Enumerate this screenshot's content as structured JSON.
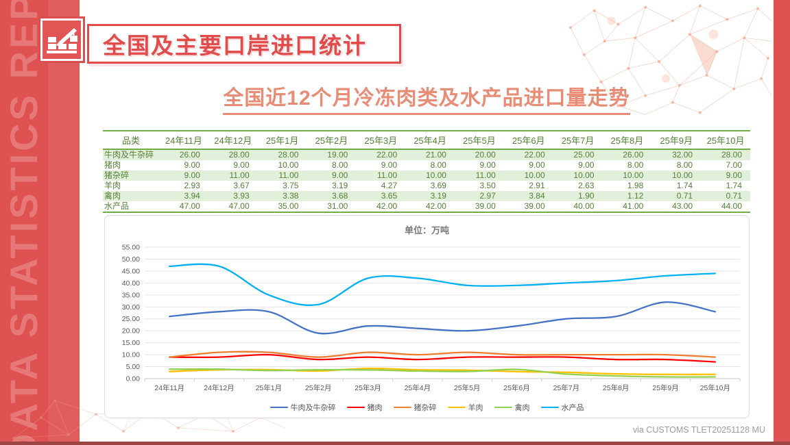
{
  "sidebar": {
    "vertical_text": "DATA STATISTICS REPORT"
  },
  "header": {
    "title": "全国及主要口岸进口统计",
    "subtitle": "全国近12个月冷冻肉类及水产品进口量走势"
  },
  "table": {
    "columns": [
      "品类",
      "24年11月",
      "24年12月",
      "25年1月",
      "25年2月",
      "25年3月",
      "25年4月",
      "25年5月",
      "25年6月",
      "25年7月",
      "25年8月",
      "25年9月",
      "25年10月"
    ],
    "rows": [
      {
        "label": "牛肉及牛杂碎",
        "values": [
          "26.00",
          "28.00",
          "28.00",
          "19.00",
          "22.00",
          "21.00",
          "20.00",
          "22.00",
          "25.00",
          "26.00",
          "32.00",
          "28.00"
        ]
      },
      {
        "label": "猪肉",
        "values": [
          "9.00",
          "9.00",
          "10.00",
          "8.00",
          "9.00",
          "8.00",
          "9.00",
          "9.00",
          "9.00",
          "8.00",
          "8.00",
          "7.00"
        ]
      },
      {
        "label": "猪杂碎",
        "values": [
          "9.00",
          "11.00",
          "11.00",
          "9.00",
          "11.00",
          "10.00",
          "11.00",
          "10.00",
          "10.00",
          "10.00",
          "10.00",
          "9.00"
        ]
      },
      {
        "label": "羊肉",
        "values": [
          "2.93",
          "3.67",
          "3.75",
          "3.19",
          "4.27",
          "3.69",
          "3.50",
          "2.91",
          "2.63",
          "1.98",
          "1.74",
          "1.74"
        ]
      },
      {
        "label": "禽肉",
        "values": [
          "3.94",
          "3.93",
          "3.38",
          "3.68",
          "3.65",
          "3.19",
          "2.97",
          "3.84",
          "1.90",
          "1.12",
          "0.71",
          "0.71"
        ]
      },
      {
        "label": "水产品",
        "values": [
          "47.00",
          "47.00",
          "35.00",
          "31.00",
          "42.00",
          "42.00",
          "39.00",
          "39.00",
          "40.00",
          "41.00",
          "43.00",
          "44.00"
        ]
      }
    ]
  },
  "chart_data": {
    "type": "line",
    "title": "单位：万吨",
    "categories": [
      "24年11月",
      "24年12月",
      "25年1月",
      "25年2月",
      "25年3月",
      "25年4月",
      "25年5月",
      "25年6月",
      "25年7月",
      "25年8月",
      "25年9月",
      "25年10月"
    ],
    "series": [
      {
        "name": "牛肉及牛杂碎",
        "color": "#4472C4",
        "values": [
          26,
          28,
          28,
          19,
          22,
          21,
          20,
          22,
          25,
          26,
          32,
          28
        ]
      },
      {
        "name": "猪肉",
        "color": "#FF0000",
        "values": [
          9,
          9,
          10,
          8,
          9,
          8,
          9,
          9,
          9,
          8,
          8,
          7
        ]
      },
      {
        "name": "猪杂碎",
        "color": "#ED7D31",
        "values": [
          9,
          11,
          11,
          9,
          11,
          10,
          11,
          10,
          10,
          10,
          10,
          9
        ]
      },
      {
        "name": "羊肉",
        "color": "#FFC000",
        "values": [
          2.93,
          3.67,
          3.75,
          3.19,
          4.27,
          3.69,
          3.5,
          2.91,
          2.63,
          1.98,
          1.74,
          1.74
        ]
      },
      {
        "name": "禽肉",
        "color": "#92D050",
        "values": [
          3.94,
          3.93,
          3.38,
          3.68,
          3.65,
          3.19,
          2.97,
          3.84,
          1.9,
          1.12,
          0.71,
          0.71
        ]
      },
      {
        "name": "水产品",
        "color": "#00B0F0",
        "values": [
          47,
          47,
          35,
          31,
          42,
          42,
          39,
          39,
          40,
          41,
          43,
          44
        ]
      }
    ],
    "ylim": [
      0,
      55
    ],
    "ytick_step": 5,
    "yticks": [
      "0.00",
      "5.00",
      "10.00",
      "15.00",
      "20.00",
      "25.00",
      "30.00",
      "35.00",
      "40.00",
      "45.00",
      "50.00",
      "55.00"
    ],
    "grid": true,
    "smooth_lines": true,
    "legend_position": "bottom"
  },
  "footer": {
    "credit": "via CUSTOMS TLET20251128 MU"
  },
  "colors": {
    "accent_red": "#E14B4B",
    "sidebar_red": "#DF5252",
    "subtitle_salmon": "#E98C75",
    "table_green_text": "#538135",
    "table_green_border": "#70AD47",
    "table_band_green": "#E2EFDA",
    "bottom_bar_dark_red": "#9C4542"
  }
}
